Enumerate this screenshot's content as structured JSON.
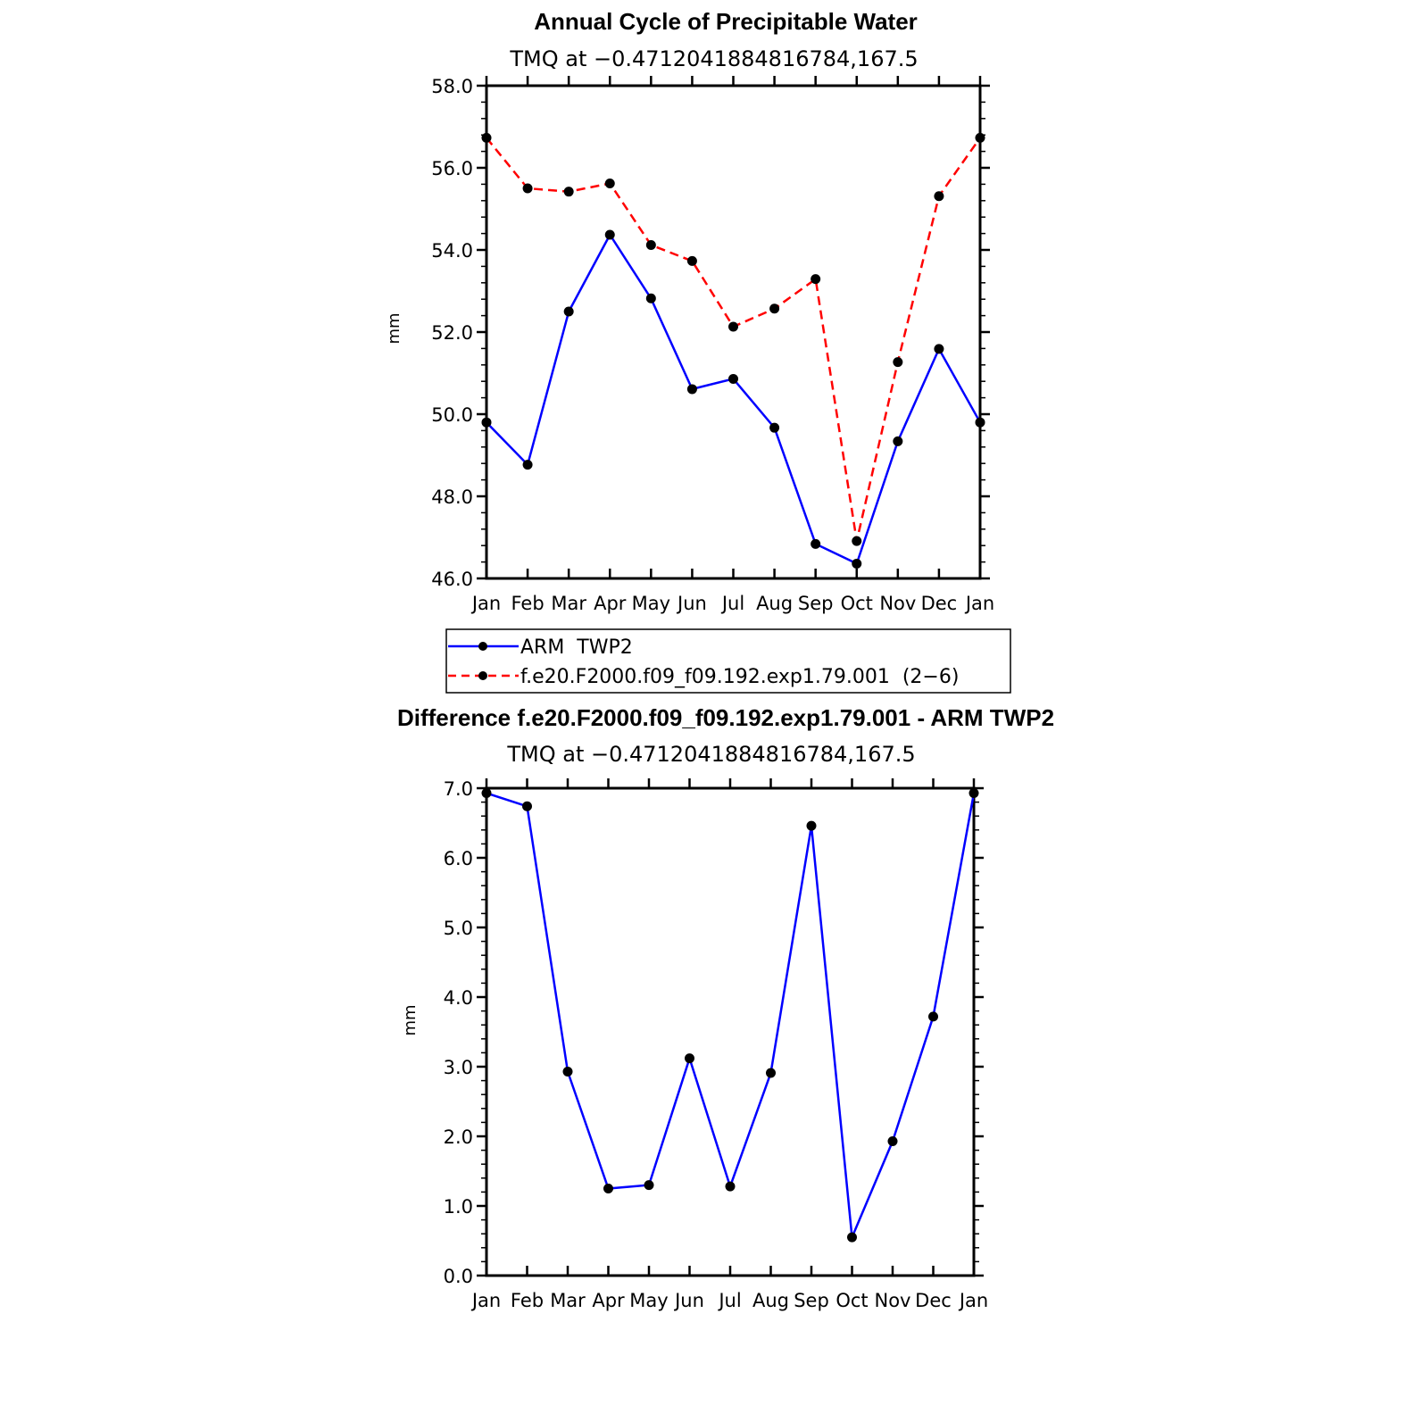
{
  "chart_data": [
    {
      "type": "line",
      "title": "Annual Cycle of Precipitable Water",
      "subtitle": "TMQ at −0.4712041884816784,167.5",
      "ylabel": "mm",
      "ylim": [
        46.0,
        58.0
      ],
      "yticks": [
        "58.0",
        "56.0",
        "54.0",
        "52.0",
        "50.0",
        "48.0",
        "46.0"
      ],
      "categories": [
        "Jan",
        "Feb",
        "Mar",
        "Apr",
        "May",
        "Jun",
        "Jul",
        "Aug",
        "Sep",
        "Oct",
        "Nov",
        "Dec",
        "Jan"
      ],
      "series": [
        {
          "name": "ARM  TWP2",
          "color": "#0000ff",
          "dashed": false,
          "values": [
            49.8,
            48.77,
            52.5,
            54.37,
            52.82,
            50.61,
            50.86,
            49.67,
            46.84,
            46.36,
            49.34,
            51.59,
            49.8
          ]
        },
        {
          "name": "f.e20.F2000.f09_f09.192.exp1.79.001  (2−6)",
          "color": "#ff0000",
          "dashed": true,
          "values": [
            56.73,
            55.5,
            55.42,
            55.62,
            54.12,
            53.73,
            52.13,
            52.57,
            53.29,
            46.91,
            51.27,
            55.31,
            56.73
          ]
        }
      ]
    },
    {
      "type": "line",
      "title": "Difference f.e20.F2000.f09_f09.192.exp1.79.001 - ARM TWP2",
      "subtitle": "TMQ at −0.4712041884816784,167.5",
      "ylabel": "mm",
      "ylim": [
        0.0,
        7.0
      ],
      "yticks": [
        "7.0",
        "6.0",
        "5.0",
        "4.0",
        "3.0",
        "2.0",
        "1.0",
        "0.0"
      ],
      "categories": [
        "Jan",
        "Feb",
        "Mar",
        "Apr",
        "May",
        "Jun",
        "Jul",
        "Aug",
        "Sep",
        "Oct",
        "Nov",
        "Dec",
        "Jan"
      ],
      "series": [
        {
          "name": "Difference",
          "color": "#0000ff",
          "dashed": false,
          "values": [
            6.93,
            6.74,
            2.93,
            1.25,
            1.3,
            3.12,
            1.28,
            2.91,
            6.46,
            0.55,
            1.93,
            3.72,
            6.93
          ]
        }
      ]
    }
  ]
}
